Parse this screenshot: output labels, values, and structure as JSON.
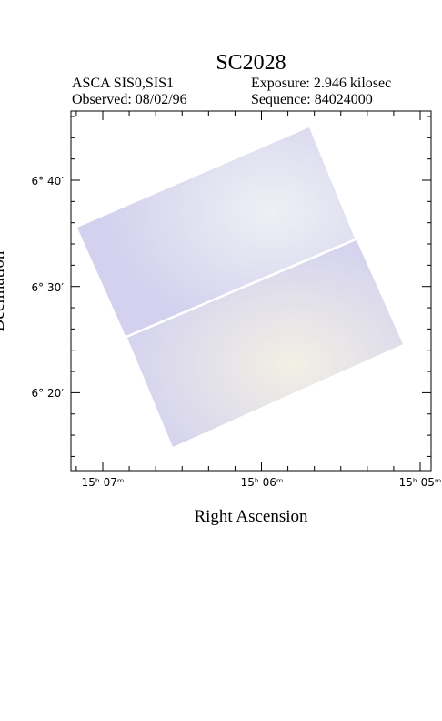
{
  "header": {
    "title": "SC2028",
    "instrument": "ASCA SIS0,SIS1",
    "exposure": "Exposure: 2.946 kilosec",
    "observed": "Observed: 08/02/96",
    "sequence": "Sequence: 84024000"
  },
  "x_axis": {
    "label": "Right Ascension",
    "ticks": [
      "15ʰ 07ᵐ",
      "15ʰ 06ᵐ",
      "15ʰ 05ᵐ"
    ]
  },
  "y_axis": {
    "label": "Declination",
    "ticks": [
      "6° 40′",
      "6° 30′",
      "6° 20′"
    ]
  }
}
